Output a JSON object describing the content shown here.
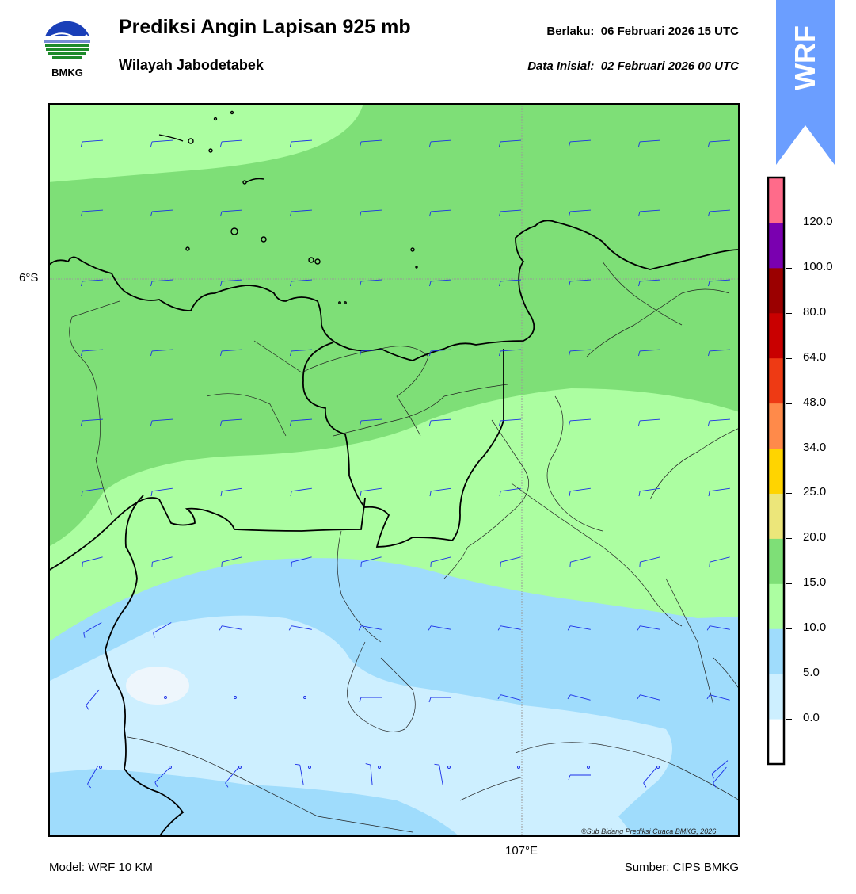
{
  "header": {
    "title": "Prediksi Angin Lapisan 925 mb",
    "subtitle": "Wilayah Jabodetabek",
    "valid_label": "Berlaku:",
    "valid_time": "06 Februari 2026 15 UTC",
    "init_label": "Data Inisial:",
    "init_time": "02 Februari 2026 00 UTC"
  },
  "logo": {
    "text": "BMKG",
    "icon": "bmkg-logo-icon"
  },
  "badge": {
    "text": "WRF",
    "color": "#6b9eff"
  },
  "map": {
    "lat_label": "6°S",
    "lon_label": "107°E",
    "credit": "©Sub Bidang Prediksi Cuaca BMKG, 2026"
  },
  "colorbar": {
    "ticks": [
      "120.0",
      "100.0",
      "80.0",
      "64.0",
      "48.0",
      "34.0",
      "25.0",
      "20.0",
      "15.0",
      "10.0",
      "5.0",
      "0.0"
    ],
    "colors": [
      "#ffffff",
      "#cdefff",
      "#9fdcfc",
      "#acfea1",
      "#7edf77",
      "#ece67a",
      "#ffd400",
      "#ff8a4a",
      "#ee3a14",
      "#c90000",
      "#9b0000",
      "#7a00b0",
      "#ff6b8a"
    ]
  },
  "footer": {
    "model": "Model: WRF 10 KM",
    "source": "Sumber: CIPS BMKG"
  },
  "wind_scale": [
    "#cdefff",
    "#9fdcfc",
    "#acfea1",
    "#7edf77"
  ]
}
